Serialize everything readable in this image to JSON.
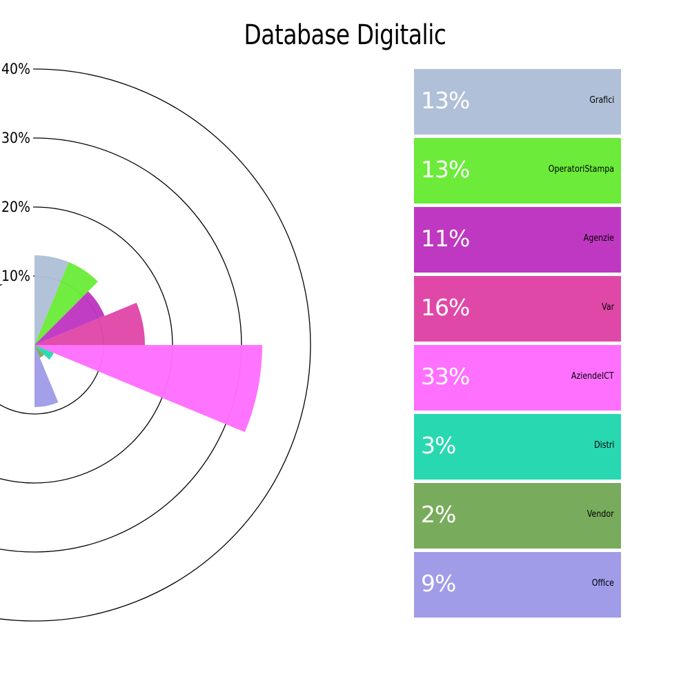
{
  "title": "Database Digitalic",
  "chart_data": {
    "type": "polar-bar",
    "title": "Database Digitalic",
    "unit": "%",
    "radial_ticks": [
      {
        "value": 10,
        "label": "10%"
      },
      {
        "value": 20,
        "label": "20%"
      },
      {
        "value": 30,
        "label": "30%"
      },
      {
        "value": 40,
        "label": "40%"
      }
    ],
    "rmax": 40,
    "series": [
      {
        "name": "Grafici",
        "value": 13,
        "label": "13%",
        "color": "#b0c0d8"
      },
      {
        "name": "OperatoriStampa",
        "value": 13,
        "label": "13%",
        "color": "#6ceb3a"
      },
      {
        "name": "Agenzie",
        "value": 11,
        "label": "11%",
        "color": "#bf38c2"
      },
      {
        "name": "Var",
        "value": 16,
        "label": "16%",
        "color": "#e048a8"
      },
      {
        "name": "AziendeICT",
        "value": 33,
        "label": "33%",
        "color": "#ff70ff"
      },
      {
        "name": "Distri",
        "value": 3,
        "label": "3%",
        "color": "#28d8b0"
      },
      {
        "name": "Vendor",
        "value": 2,
        "label": "2%",
        "color": "#78ac5c"
      },
      {
        "name": "Office",
        "value": 9,
        "label": "9%",
        "color": "#a09ce8"
      }
    ]
  }
}
